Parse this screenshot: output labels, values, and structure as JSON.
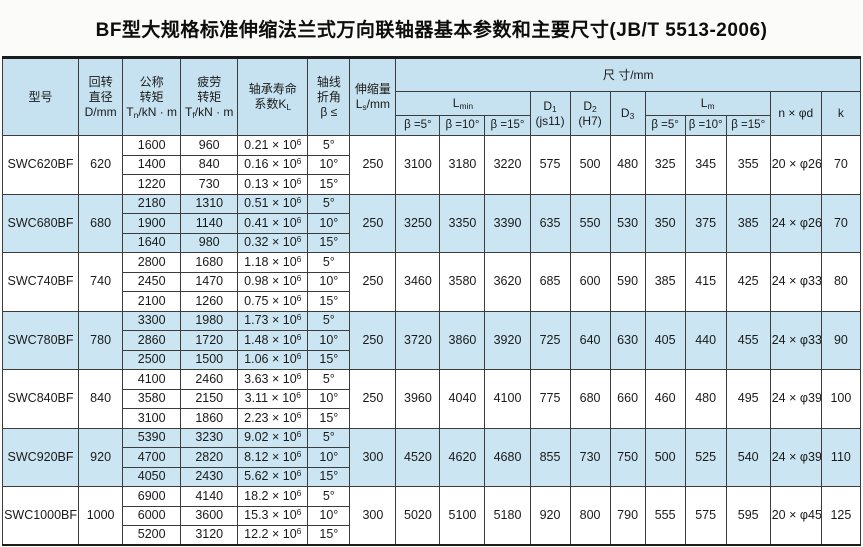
{
  "title": "BF型大规格标准伸缩法兰式万向联轴器基本参数和主要尺寸(JB/T 5513-2006)",
  "colors": {
    "header_bg": "#c6e2f0",
    "band_bg": "#cbe6f2",
    "border": "#3c3c3c",
    "frame": "#1c1c1c"
  },
  "table": {
    "header": {
      "model": "型号",
      "diameter": {
        "l1": "回转",
        "l2": "直径",
        "l3": "D/mm"
      },
      "nominal": {
        "l1": "公称",
        "l2": "转矩",
        "sym": "T",
        "sub": "n",
        "unit": "/kN · m"
      },
      "fatigue": {
        "l1": "疲劳",
        "l2": "转矩",
        "sym": "T",
        "sub": "f",
        "unit": "/kN · m"
      },
      "bearing": {
        "l1": "轴承寿命",
        "l2": "系数K",
        "sub": "L"
      },
      "angle": {
        "l1": "轴线",
        "l2": "折角",
        "l3": "β ≤"
      },
      "extension": {
        "l1": "伸缩量",
        "sym": "L",
        "sub": "s",
        "unit": "/mm"
      },
      "dimensions": "尺 寸/mm",
      "lmin": {
        "sym": "L",
        "sub": "min"
      },
      "lm": {
        "sym": "L",
        "sub": "m"
      },
      "d1": {
        "sym": "D",
        "sub": "1",
        "l2": "(js11)"
      },
      "d2": {
        "sym": "D",
        "sub": "2",
        "l2": "(H7)"
      },
      "d3": {
        "sym": "D",
        "sub": "3"
      },
      "beta_cols": [
        "β =5°",
        "β =10°",
        "β =15°"
      ],
      "n_phi_d": "n × φd",
      "k": "k"
    },
    "kl_suffix": {
      "times": " × 10",
      "exp": "6"
    },
    "groups": [
      {
        "model": "SWC620BF",
        "d": "620",
        "ls": "250",
        "rows": [
          [
            "1600",
            "960",
            "0.21",
            "5°"
          ],
          [
            "1400",
            "840",
            "0.16",
            "10°"
          ],
          [
            "1220",
            "730",
            "0.13",
            "15°"
          ]
        ],
        "lmin": [
          "3100",
          "3180",
          "3220"
        ],
        "d1": "575",
        "d2": "500",
        "d3": "480",
        "lm": [
          "325",
          "345",
          "355"
        ],
        "nd": "20 × φ26",
        "k": "70"
      },
      {
        "model": "SWC680BF",
        "d": "680",
        "ls": "250",
        "rows": [
          [
            "2180",
            "1310",
            "0.51",
            "5°"
          ],
          [
            "1900",
            "1140",
            "0.41",
            "10°"
          ],
          [
            "1640",
            "980",
            "0.32",
            "15°"
          ]
        ],
        "lmin": [
          "3250",
          "3350",
          "3390"
        ],
        "d1": "635",
        "d2": "550",
        "d3": "530",
        "lm": [
          "350",
          "375",
          "385"
        ],
        "nd": "24 × φ26",
        "k": "70"
      },
      {
        "model": "SWC740BF",
        "d": "740",
        "ls": "250",
        "rows": [
          [
            "2800",
            "1680",
            "1.18",
            "5°"
          ],
          [
            "2450",
            "1470",
            "0.98",
            "10°"
          ],
          [
            "2100",
            "1260",
            "0.75",
            "15°"
          ]
        ],
        "lmin": [
          "3460",
          "3580",
          "3620"
        ],
        "d1": "685",
        "d2": "600",
        "d3": "590",
        "lm": [
          "385",
          "415",
          "425"
        ],
        "nd": "24 × φ33",
        "k": "80"
      },
      {
        "model": "SWC780BF",
        "d": "780",
        "ls": "250",
        "rows": [
          [
            "3300",
            "1980",
            "1.73",
            "5°"
          ],
          [
            "2860",
            "1720",
            "1.48",
            "10°"
          ],
          [
            "2500",
            "1500",
            "1.06",
            "15°"
          ]
        ],
        "lmin": [
          "3720",
          "3860",
          "3920"
        ],
        "d1": "725",
        "d2": "640",
        "d3": "630",
        "lm": [
          "405",
          "440",
          "455"
        ],
        "nd": "24 × φ33",
        "k": "90"
      },
      {
        "model": "SWC840BF",
        "d": "840",
        "ls": "250",
        "rows": [
          [
            "4100",
            "2460",
            "3.63",
            "5°"
          ],
          [
            "3580",
            "2150",
            "3.11",
            "10°"
          ],
          [
            "3100",
            "1860",
            "2.23",
            "15°"
          ]
        ],
        "lmin": [
          "3960",
          "4040",
          "4100"
        ],
        "d1": "775",
        "d2": "680",
        "d3": "660",
        "lm": [
          "460",
          "480",
          "495"
        ],
        "nd": "24 × φ39",
        "k": "100"
      },
      {
        "model": "SWC920BF",
        "d": "920",
        "ls": "300",
        "rows": [
          [
            "5390",
            "3230",
            "9.02",
            "5°"
          ],
          [
            "4700",
            "2820",
            "8.12",
            "10°"
          ],
          [
            "4050",
            "2430",
            "5.62",
            "15°"
          ]
        ],
        "lmin": [
          "4520",
          "4620",
          "4680"
        ],
        "d1": "855",
        "d2": "730",
        "d3": "750",
        "lm": [
          "500",
          "525",
          "540"
        ],
        "nd": "24 × φ39",
        "k": "110"
      },
      {
        "model": "SWC1000BF",
        "d": "1000",
        "ls": "300",
        "rows": [
          [
            "6900",
            "4140",
            "18.2",
            "5°"
          ],
          [
            "6000",
            "3600",
            "15.3",
            "10°"
          ],
          [
            "5200",
            "3120",
            "12.2",
            "15°"
          ]
        ],
        "lmin": [
          "5020",
          "5100",
          "5180"
        ],
        "d1": "920",
        "d2": "800",
        "d3": "790",
        "lm": [
          "555",
          "575",
          "595"
        ],
        "nd": "20 × φ45",
        "k": "125"
      }
    ]
  }
}
